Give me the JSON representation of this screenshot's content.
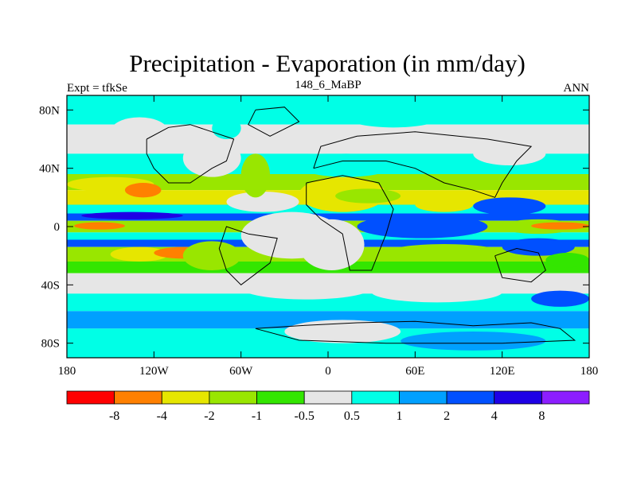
{
  "chart_data": {
    "type": "heatmap",
    "title": "Precipitation - Evaporation (in mm/day)",
    "subtitle_left": "Expt = tfkSe",
    "subtitle_center": "148_6_MaBP",
    "subtitle_right": "ANN",
    "x_range": [
      -180,
      180
    ],
    "y_range": [
      -90,
      90
    ],
    "x_ticks": [
      {
        "value": -180,
        "label": "180"
      },
      {
        "value": -120,
        "label": "120W"
      },
      {
        "value": -60,
        "label": "60W"
      },
      {
        "value": 0,
        "label": "0"
      },
      {
        "value": 60,
        "label": "60E"
      },
      {
        "value": 120,
        "label": "120E"
      },
      {
        "value": 180,
        "label": "180"
      }
    ],
    "y_ticks": [
      {
        "value": 80,
        "label": "80N"
      },
      {
        "value": 40,
        "label": "40N"
      },
      {
        "value": 0,
        "label": "0"
      },
      {
        "value": -40,
        "label": "40S"
      },
      {
        "value": -80,
        "label": "80S"
      }
    ],
    "colorbar": {
      "colors": [
        "#ff0000",
        "#ff8000",
        "#e6e600",
        "#99e600",
        "#33e600",
        "#e6e6e6",
        "#00ffe6",
        "#00a0ff",
        "#0050ff",
        "#1e00e6",
        "#8c1eff"
      ],
      "labels": [
        "-8",
        "-4",
        "-2",
        "-1",
        "-0.5",
        "0.5",
        "1",
        "2",
        "4",
        "8"
      ]
    },
    "zonal_bands": [
      {
        "lat": [
          70,
          90
        ],
        "level": 6
      },
      {
        "lat": [
          50,
          70
        ],
        "level": 5
      },
      {
        "lat": [
          36,
          50
        ],
        "level": 6
      },
      {
        "lat": [
          25,
          36
        ],
        "level": 3
      },
      {
        "lat": [
          15,
          25
        ],
        "level": 2
      },
      {
        "lat": [
          9,
          15
        ],
        "level": 6
      },
      {
        "lat": [
          4,
          9
        ],
        "level": 8
      },
      {
        "lat": [
          -4,
          4
        ],
        "level": 3
      },
      {
        "lat": [
          -9,
          -4
        ],
        "level": 6
      },
      {
        "lat": [
          -14,
          -9
        ],
        "level": 8
      },
      {
        "lat": [
          -24,
          -14
        ],
        "level": 3
      },
      {
        "lat": [
          -32,
          -24
        ],
        "level": 4
      },
      {
        "lat": [
          -46,
          -32
        ],
        "level": 5
      },
      {
        "lat": [
          -58,
          -46
        ],
        "level": 6
      },
      {
        "lat": [
          -70,
          -58
        ],
        "level": 7
      },
      {
        "lat": [
          -90,
          -70
        ],
        "level": 6
      }
    ],
    "regions": [
      {
        "lon": [
          -180,
          -120
        ],
        "lat": [
          24,
          34
        ],
        "level": 2
      },
      {
        "lon": [
          -140,
          -115
        ],
        "lat": [
          20,
          30
        ],
        "level": 1
      },
      {
        "lon": [
          -170,
          -100
        ],
        "lat": [
          5,
          10
        ],
        "level": 9
      },
      {
        "lon": [
          -175,
          -140
        ],
        "lat": [
          -2,
          3
        ],
        "level": 1
      },
      {
        "lon": [
          -150,
          -110
        ],
        "lat": [
          -24,
          -14
        ],
        "level": 2
      },
      {
        "lon": [
          -120,
          -80
        ],
        "lat": [
          -22,
          -14
        ],
        "level": 1
      },
      {
        "lon": [
          -100,
          -60
        ],
        "lat": [
          -30,
          -10
        ],
        "level": 3
      },
      {
        "lon": [
          -60,
          10
        ],
        "lat": [
          -22,
          10
        ],
        "level": 5
      },
      {
        "lon": [
          -20,
          25
        ],
        "lat": [
          -30,
          5
        ],
        "level": 5
      },
      {
        "lon": [
          -70,
          -20
        ],
        "lat": [
          10,
          24
        ],
        "level": 5
      },
      {
        "lon": [
          -100,
          -60
        ],
        "lat": [
          34,
          60
        ],
        "level": 5
      },
      {
        "lon": [
          -60,
          -40
        ],
        "lat": [
          20,
          50
        ],
        "level": 3
      },
      {
        "lon": [
          -45,
          30
        ],
        "lat": [
          50,
          70
        ],
        "level": 5
      },
      {
        "lon": [
          -20,
          40
        ],
        "lat": [
          10,
          34
        ],
        "level": 2
      },
      {
        "lon": [
          5,
          50
        ],
        "lat": [
          16,
          26
        ],
        "level": 3
      },
      {
        "lon": [
          60,
          100
        ],
        "lat": [
          10,
          20
        ],
        "level": 2
      },
      {
        "lon": [
          -20,
          45
        ],
        "lat": [
          34,
          50
        ],
        "level": 6
      },
      {
        "lon": [
          20,
          110
        ],
        "lat": [
          -8,
          8
        ],
        "level": 8
      },
      {
        "lon": [
          40,
          120
        ],
        "lat": [
          -24,
          -12
        ],
        "level": 3
      },
      {
        "lon": [
          120,
          170
        ],
        "lat": [
          -5,
          5
        ],
        "level": 3
      },
      {
        "lon": [
          140,
          180
        ],
        "lat": [
          -2,
          3
        ],
        "level": 1
      },
      {
        "lon": [
          100,
          150
        ],
        "lat": [
          8,
          20
        ],
        "level": 8
      },
      {
        "lon": [
          120,
          170
        ],
        "lat": [
          -20,
          -8
        ],
        "level": 8
      },
      {
        "lon": [
          150,
          180
        ],
        "lat": [
          -28,
          -18
        ],
        "level": 4
      },
      {
        "lon": [
          -60,
          30
        ],
        "lat": [
          -50,
          -34
        ],
        "level": 5
      },
      {
        "lon": [
          30,
          120
        ],
        "lat": [
          -52,
          -38
        ],
        "level": 5
      },
      {
        "lon": [
          140,
          180
        ],
        "lat": [
          -55,
          -44
        ],
        "level": 8
      },
      {
        "lon": [
          -150,
          -110
        ],
        "lat": [
          55,
          75
        ],
        "level": 5
      },
      {
        "lon": [
          100,
          150
        ],
        "lat": [
          42,
          58
        ],
        "level": 5
      },
      {
        "lon": [
          10,
          80
        ],
        "lat": [
          68,
          85
        ],
        "level": 6
      },
      {
        "lon": [
          -80,
          -60
        ],
        "lat": [
          60,
          75
        ],
        "level": 6
      },
      {
        "lon": [
          -30,
          50
        ],
        "lat": [
          -80,
          -64
        ],
        "level": 5
      },
      {
        "lon": [
          50,
          150
        ],
        "lat": [
          -85,
          -72
        ],
        "level": 7
      }
    ]
  }
}
